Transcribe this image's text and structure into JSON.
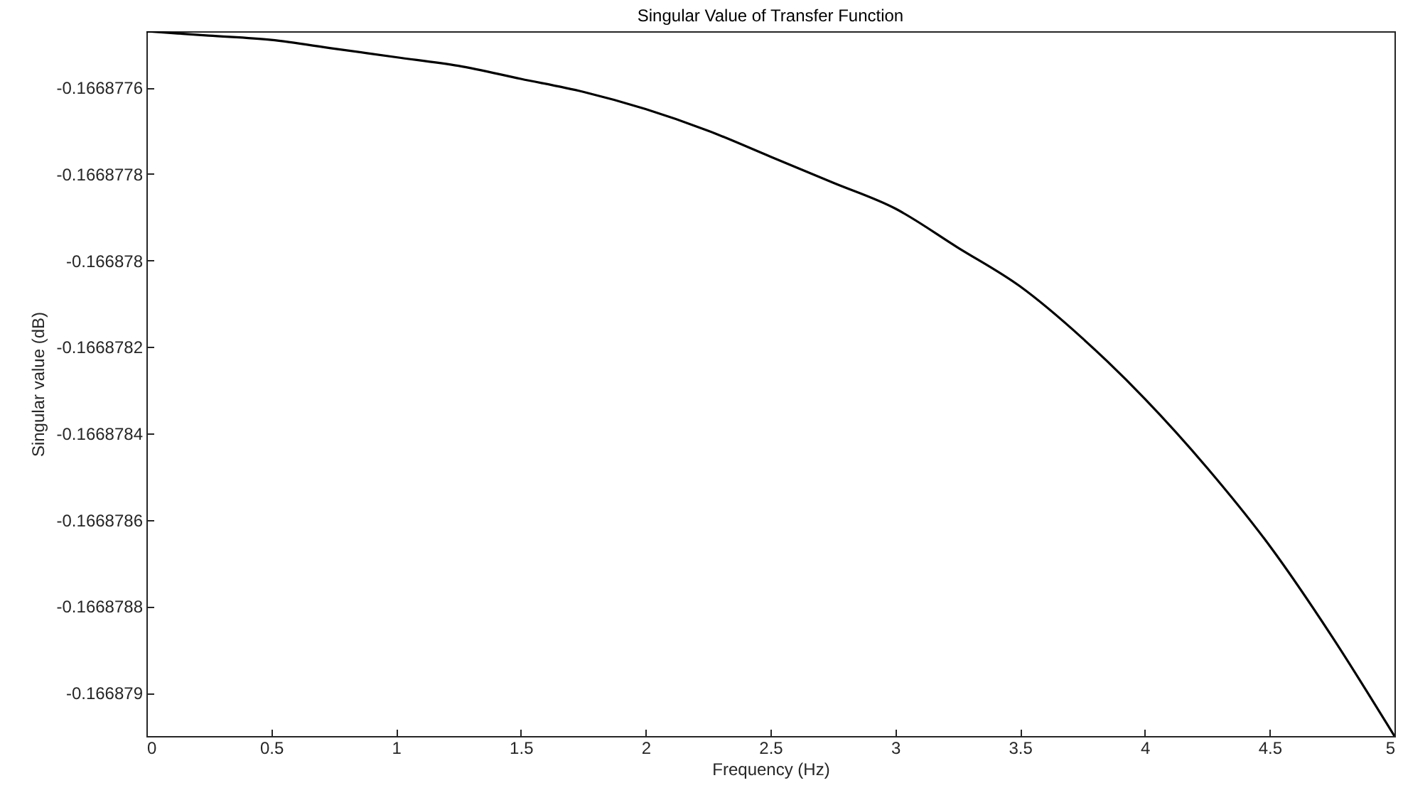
{
  "chart_data": {
    "type": "line",
    "title": "Singular Value of Transfer Function",
    "xlabel": "Frequency (Hz)",
    "ylabel": "Singular value (dB)",
    "x": [
      0,
      0.25,
      0.5,
      0.75,
      1,
      1.25,
      1.5,
      1.75,
      2,
      2.25,
      2.5,
      2.75,
      3,
      3.25,
      3.5,
      3.75,
      4,
      4.25,
      4.5,
      4.75,
      5
    ],
    "series": [
      {
        "color": "#000000",
        "values": [
          -0.16687747,
          -0.16687748,
          -0.16687749,
          -0.16687751,
          -0.16687753,
          -0.16687755,
          -0.16687758,
          -0.16687761,
          -0.16687765,
          -0.1668777,
          -0.16687776,
          -0.16687782,
          -0.16687788,
          -0.16687797,
          -0.16687806,
          -0.16687818,
          -0.16687832,
          -0.16687848,
          -0.16687866,
          -0.16687887,
          -0.1668791
        ]
      }
    ],
    "xlim": [
      0,
      5
    ],
    "xticks": [
      0,
      0.5,
      1,
      1.5,
      2,
      2.5,
      3,
      3.5,
      4,
      4.5,
      5
    ],
    "ylim": [
      -0.1668791,
      -0.16687747
    ],
    "yticks": [
      -0.166879,
      -0.1668788,
      -0.1668786,
      -0.1668784,
      -0.1668782,
      -0.166878,
      -0.1668778,
      -0.1668776
    ],
    "grid": false,
    "marker": "none",
    "line_style": "solid"
  }
}
